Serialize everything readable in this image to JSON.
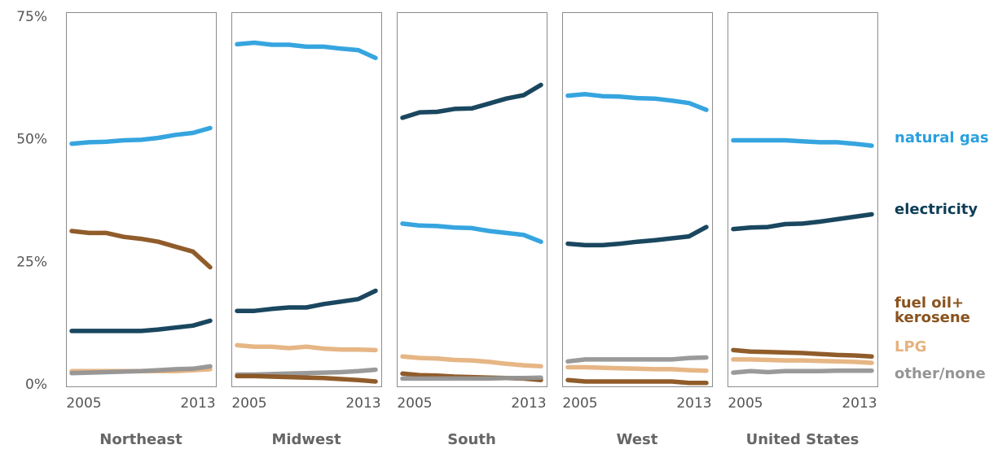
{
  "chart_data": {
    "type": "line",
    "ylim": [
      0,
      75
    ],
    "y_ticks": [
      "75%",
      "50%",
      "25%",
      "0%"
    ],
    "y_tick_values": [
      75,
      50,
      25,
      0
    ],
    "x_tick_labels": [
      "2005",
      "2013"
    ],
    "x": [
      2005,
      2006,
      2007,
      2008,
      2009,
      2010,
      2011,
      2012,
      2013
    ],
    "colors": {
      "natural gas": "#2ba0dd",
      "electricity": "#0e3d56",
      "fuel oil+ kerosene": "#8a531f",
      "LPG": "#e5b27e",
      "other/none": "#959595"
    },
    "legend": [
      {
        "key": "natural gas",
        "lines": [
          "natural gas"
        ]
      },
      {
        "key": "electricity",
        "lines": [
          "electricity"
        ]
      },
      {
        "key": "fuel oil+ kerosene",
        "lines": [
          "fuel oil+",
          "kerosene"
        ]
      },
      {
        "key": "LPG",
        "lines": [
          "LPG"
        ]
      },
      {
        "key": "other/none",
        "lines": [
          "other/none"
        ]
      }
    ],
    "panels": [
      {
        "region": "Northeast",
        "series": [
          {
            "key": "fuel oil+ kerosene",
            "values": [
              31.2,
              30.8,
              30.8,
              30.0,
              29.6,
              29.0,
              28.0,
              27.0,
              23.8
            ]
          },
          {
            "key": "natural gas",
            "values": [
              49.0,
              49.3,
              49.4,
              49.7,
              49.8,
              50.2,
              50.8,
              51.2,
              52.2
            ]
          },
          {
            "key": "electricity",
            "values": [
              10.8,
              10.8,
              10.8,
              10.8,
              10.8,
              11.1,
              11.5,
              11.9,
              12.9
            ]
          },
          {
            "key": "LPG",
            "values": [
              2.6,
              2.6,
              2.6,
              2.6,
              2.6,
              2.6,
              2.6,
              2.8,
              3.0
            ]
          },
          {
            "key": "other/none",
            "values": [
              2.2,
              2.3,
              2.4,
              2.5,
              2.6,
              2.8,
              3.0,
              3.1,
              3.6
            ]
          }
        ]
      },
      {
        "region": "Midwest",
        "series": [
          {
            "key": "natural gas",
            "values": [
              69.3,
              69.6,
              69.2,
              69.2,
              68.8,
              68.8,
              68.4,
              68.1,
              66.5
            ]
          },
          {
            "key": "electricity",
            "values": [
              14.9,
              14.9,
              15.3,
              15.6,
              15.6,
              16.3,
              16.8,
              17.3,
              19.0
            ]
          },
          {
            "key": "LPG",
            "values": [
              7.9,
              7.6,
              7.6,
              7.3,
              7.6,
              7.2,
              7.0,
              7.0,
              6.9
            ]
          },
          {
            "key": "other/none",
            "values": [
              1.9,
              1.9,
              2.0,
              2.1,
              2.2,
              2.3,
              2.4,
              2.6,
              2.9
            ]
          },
          {
            "key": "fuel oil+ kerosene",
            "values": [
              1.6,
              1.6,
              1.5,
              1.4,
              1.3,
              1.2,
              1.0,
              0.8,
              0.5
            ]
          }
        ]
      },
      {
        "region": "South",
        "series": [
          {
            "key": "electricity",
            "values": [
              54.3,
              55.4,
              55.5,
              56.1,
              56.2,
              57.2,
              58.2,
              58.9,
              61.0
            ]
          },
          {
            "key": "natural gas",
            "values": [
              32.7,
              32.3,
              32.2,
              31.9,
              31.8,
              31.2,
              30.8,
              30.4,
              29.0
            ]
          },
          {
            "key": "LPG",
            "values": [
              5.6,
              5.3,
              5.2,
              4.9,
              4.8,
              4.5,
              4.1,
              3.8,
              3.6
            ]
          },
          {
            "key": "fuel oil+ kerosene",
            "values": [
              2.1,
              1.8,
              1.7,
              1.5,
              1.4,
              1.3,
              1.2,
              1.1,
              0.8
            ]
          },
          {
            "key": "other/none",
            "values": [
              1.1,
              1.1,
              1.1,
              1.1,
              1.1,
              1.1,
              1.2,
              1.2,
              1.3
            ]
          }
        ]
      },
      {
        "region": "West",
        "series": [
          {
            "key": "natural gas",
            "values": [
              58.8,
              59.1,
              58.7,
              58.6,
              58.3,
              58.2,
              57.8,
              57.3,
              55.9
            ]
          },
          {
            "key": "electricity",
            "values": [
              28.6,
              28.3,
              28.3,
              28.6,
              29.0,
              29.3,
              29.7,
              30.1,
              32.0
            ]
          },
          {
            "key": "other/none",
            "values": [
              4.6,
              5.0,
              5.0,
              5.0,
              5.0,
              5.0,
              5.0,
              5.3,
              5.4
            ]
          },
          {
            "key": "LPG",
            "values": [
              3.4,
              3.4,
              3.3,
              3.2,
              3.1,
              3.0,
              3.0,
              2.8,
              2.7
            ]
          },
          {
            "key": "fuel oil+ kerosene",
            "values": [
              0.8,
              0.5,
              0.5,
              0.5,
              0.5,
              0.5,
              0.5,
              0.2,
              0.2
            ]
          }
        ]
      },
      {
        "region": "United States",
        "series": [
          {
            "key": "natural gas",
            "values": [
              49.7,
              49.7,
              49.7,
              49.7,
              49.5,
              49.3,
              49.3,
              49.0,
              48.6
            ]
          },
          {
            "key": "electricity",
            "values": [
              31.6,
              31.9,
              32.0,
              32.6,
              32.7,
              33.1,
              33.6,
              34.1,
              34.6
            ]
          },
          {
            "key": "fuel oil+ kerosene",
            "values": [
              6.9,
              6.6,
              6.5,
              6.4,
              6.3,
              6.1,
              5.9,
              5.8,
              5.6
            ]
          },
          {
            "key": "LPG",
            "values": [
              5.0,
              5.0,
              4.9,
              4.8,
              4.8,
              4.7,
              4.6,
              4.5,
              4.3
            ]
          },
          {
            "key": "other/none",
            "values": [
              2.3,
              2.6,
              2.4,
              2.6,
              2.6,
              2.6,
              2.7,
              2.7,
              2.7
            ]
          }
        ]
      }
    ]
  }
}
